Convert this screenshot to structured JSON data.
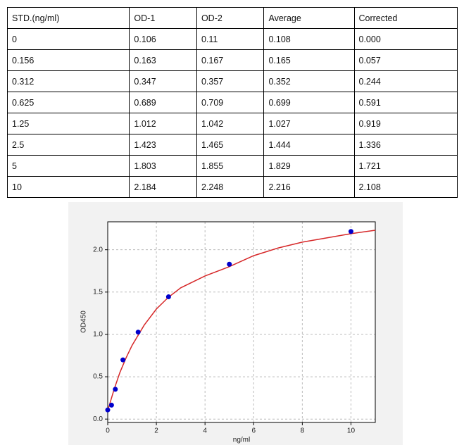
{
  "table": {
    "header": [
      "STD.(ng/ml)",
      "OD-1",
      "OD-2",
      "Average",
      "Corrected"
    ],
    "rows": [
      [
        "0",
        "0.106",
        "0.11",
        "0.108",
        "0.000"
      ],
      [
        "0.156",
        "0.163",
        "0.167",
        "0.165",
        "0.057"
      ],
      [
        "0.312",
        "0.347",
        "0.357",
        "0.352",
        "0.244"
      ],
      [
        "0.625",
        "0.689",
        "0.709",
        "0.699",
        "0.591"
      ],
      [
        "1.25",
        "1.012",
        "1.042",
        "1.027",
        "0.919"
      ],
      [
        "2.5",
        "1.423",
        "1.465",
        "1.444",
        "1.336"
      ],
      [
        "5",
        "1.803",
        "1.855",
        "1.829",
        "1.721"
      ],
      [
        "10",
        "2.184",
        "2.248",
        "2.216",
        "2.108"
      ]
    ]
  },
  "chart_data": {
    "type": "scatter",
    "x_label": "ng/ml",
    "y_label": "OD450",
    "xlim": [
      0,
      11
    ],
    "ylim": [
      -0.04,
      2.33
    ],
    "xticks": [
      0,
      2,
      4,
      6,
      8,
      10
    ],
    "yticks": [
      {
        "value": 0,
        "label": "0.0"
      },
      {
        "value": 0.5,
        "label": "0.5"
      },
      {
        "value": 1,
        "label": "1.0"
      },
      {
        "value": 1.5,
        "label": "1.5"
      },
      {
        "value": 2,
        "label": "2.0"
      }
    ],
    "grid": true,
    "series": [
      {
        "type": "line",
        "color": "#d62728",
        "x": [
          0,
          0.25,
          0.5,
          0.75,
          1,
          1.5,
          2,
          2.5,
          3,
          4,
          5,
          6,
          7,
          8,
          9,
          10,
          11
        ],
        "values": [
          0.1,
          0.34,
          0.55,
          0.72,
          0.87,
          1.11,
          1.3,
          1.44,
          1.55,
          1.69,
          1.8,
          1.93,
          2.02,
          2.09,
          2.14,
          2.19,
          2.23
        ]
      },
      {
        "type": "scatter",
        "color": "#0000cc",
        "x": [
          0,
          0.156,
          0.312,
          0.625,
          1.25,
          2.5,
          5,
          10
        ],
        "values": [
          0.108,
          0.165,
          0.352,
          0.699,
          1.027,
          1.444,
          1.829,
          2.216
        ]
      }
    ]
  }
}
